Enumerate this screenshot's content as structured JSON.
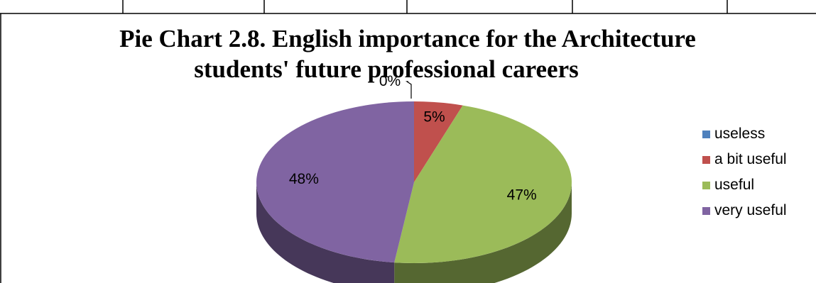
{
  "chart_data": {
    "type": "pie",
    "title": "Pie Chart 2.8. English importance for the Architecture students' future professional careers",
    "title_lines": [
      "Pie Chart 2.8. English importance for the Architecture",
      "students' future professional careers"
    ],
    "categories": [
      "useless",
      "a bit useful",
      "useful",
      "very useful"
    ],
    "values": [
      0,
      5,
      47,
      48
    ],
    "value_labels": [
      "0%",
      "5%",
      "47%",
      "48%"
    ],
    "colors": [
      "#4F81BD",
      "#C0504D",
      "#9BBB59",
      "#8064A2"
    ],
    "style": "3d",
    "legend_position": "right"
  }
}
